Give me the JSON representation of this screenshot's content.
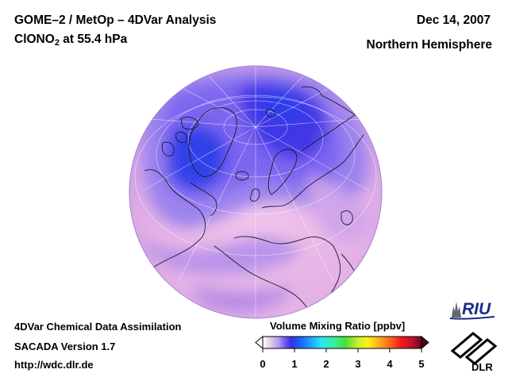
{
  "header": {
    "title_line1": "GOME–2 / MetOp – 4DVar Analysis",
    "species_main": "ClONO",
    "species_sub": "2",
    "species_rest": " at 55.4 hPa",
    "date": "Dec 14, 2007",
    "region": "Northern Hemisphere"
  },
  "footer": {
    "line1": "4DVar Chemical Data Assimilation",
    "line2": "SACADA Version 1.7",
    "line3": "http://wdc.dlr.de"
  },
  "colorbar": {
    "title": "Volume Mixing Ratio [ppbv]",
    "ticks": [
      "0",
      "1",
      "2",
      "3",
      "4",
      "5"
    ],
    "range": [
      0,
      5
    ],
    "colors": [
      "#ffffff",
      "#e8c8ee",
      "#b59bf0",
      "#6f5bef",
      "#3a2ee8",
      "#1e5bf2",
      "#1ea0ff",
      "#2be6f5",
      "#38f0a0",
      "#48e038",
      "#c8f028",
      "#ffef1a",
      "#ffb01a",
      "#ff6a1a",
      "#f01c1c",
      "#c01030",
      "#6a0a18"
    ]
  },
  "logos": {
    "riu_text": "RIU",
    "dlr_text": "DLR"
  },
  "map": {
    "projection": "orthographic-northern-hemisphere",
    "background_color": "#e8b9e6",
    "low_color": "#2222dd"
  }
}
